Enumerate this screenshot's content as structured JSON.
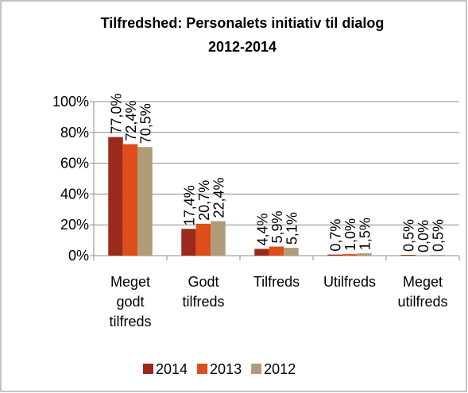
{
  "chart_data": {
    "type": "bar",
    "title": "Tilfredshed: Personalets initiativ til dialog 2012-2014",
    "categories": [
      "Meget godt tilfreds",
      "Godt tilfreds",
      "Tilfreds",
      "Utilfreds",
      "Meget utilfreds"
    ],
    "series": [
      {
        "name": "2014",
        "color": "#9c2a1c",
        "values": [
          77.0,
          17.4,
          4.4,
          0.7,
          0.5
        ],
        "value_labels": [
          "77,0%",
          "17,4%",
          "4,4%",
          "0,7%",
          "0,5%"
        ]
      },
      {
        "name": "2013",
        "color": "#dd4e1a",
        "values": [
          72.4,
          20.7,
          5.9,
          1.0,
          0.0
        ],
        "value_labels": [
          "72,4%",
          "20,7%",
          "5,9%",
          "1,0%",
          "0,0%"
        ]
      },
      {
        "name": "2012",
        "color": "#b09c78",
        "values": [
          70.5,
          22.4,
          5.1,
          1.5,
          0.5
        ],
        "value_labels": [
          "70,5%",
          "22,4%",
          "5,1%",
          "1,5%",
          "0,5%"
        ]
      }
    ],
    "ylim": [
      0,
      100
    ],
    "yticks": [
      {
        "value": 0,
        "label": "0%"
      },
      {
        "value": 20,
        "label": "20%"
      },
      {
        "value": 40,
        "label": "40%"
      },
      {
        "value": 60,
        "label": "60%"
      },
      {
        "value": 80,
        "label": "80%"
      },
      {
        "value": 100,
        "label": "100%"
      }
    ],
    "grid": true,
    "legend": "bottom"
  }
}
